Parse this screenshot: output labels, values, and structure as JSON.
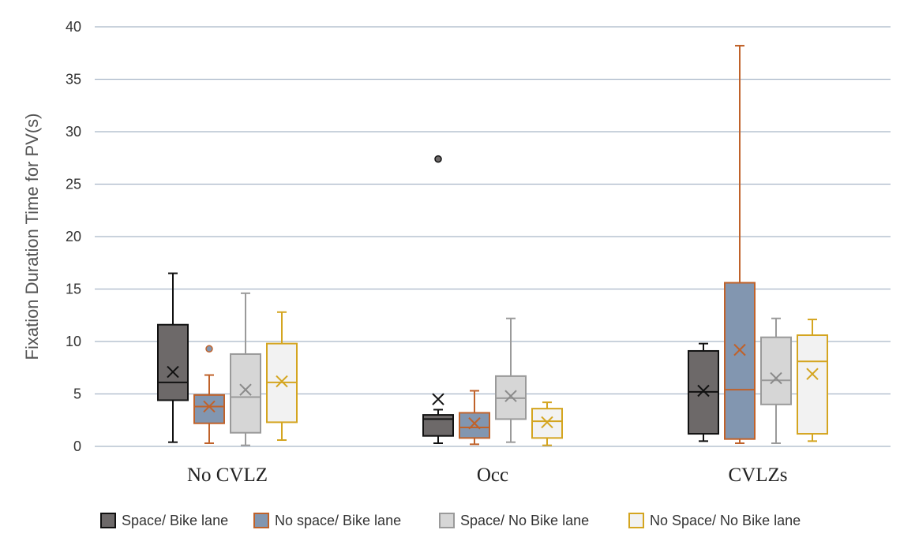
{
  "chart_data": {
    "type": "box",
    "ylabel": "Fixation Duration Time for PV(s)",
    "ylim": [
      0,
      40
    ],
    "yticks": [
      0,
      5,
      10,
      15,
      20,
      25,
      30,
      35,
      40
    ],
    "grid": true,
    "legend_position": "bottom",
    "categories": [
      "No CVLZ",
      "Occ",
      "CVLZs"
    ],
    "series": [
      {
        "name": "Space/ Bike lane",
        "fill": "#6d6969",
        "stroke": "#111111",
        "mean_color": "#111111",
        "boxes": [
          {
            "whisker_low": 0.4,
            "q1": 4.4,
            "median": 6.1,
            "q3": 11.6,
            "whisker_high": 16.5,
            "mean": 7.1,
            "outliers": []
          },
          {
            "whisker_low": 0.3,
            "q1": 1.0,
            "median": 2.6,
            "q3": 3.0,
            "whisker_high": 3.5,
            "mean": 4.5,
            "outliers": [
              27.4
            ]
          },
          {
            "whisker_low": 0.5,
            "q1": 1.2,
            "median": 5.2,
            "q3": 9.1,
            "whisker_high": 9.8,
            "mean": 5.3,
            "outliers": []
          }
        ]
      },
      {
        "name": "No space/ Bike lane",
        "fill": "#8296b0",
        "stroke": "#c0622a",
        "mean_color": "#c0622a",
        "boxes": [
          {
            "whisker_low": 0.3,
            "q1": 2.2,
            "median": 3.8,
            "q3": 4.9,
            "whisker_high": 6.8,
            "mean": 3.8,
            "outliers": [
              9.3
            ]
          },
          {
            "whisker_low": 0.2,
            "q1": 0.8,
            "median": 1.8,
            "q3": 3.2,
            "whisker_high": 5.3,
            "mean": 2.2,
            "outliers": []
          },
          {
            "whisker_low": 0.3,
            "q1": 0.7,
            "median": 5.4,
            "q3": 15.6,
            "whisker_high": 38.2,
            "mean": 9.2,
            "outliers": []
          }
        ]
      },
      {
        "name": "Space/ No Bike lane",
        "fill": "#d6d6d6",
        "stroke": "#9a9a9a",
        "mean_color": "#8a8a8a",
        "boxes": [
          {
            "whisker_low": 0.1,
            "q1": 1.3,
            "median": 4.7,
            "q3": 8.8,
            "whisker_high": 14.6,
            "mean": 5.4,
            "outliers": []
          },
          {
            "whisker_low": 0.4,
            "q1": 2.6,
            "median": 4.6,
            "q3": 6.7,
            "whisker_high": 12.2,
            "mean": 4.8,
            "outliers": []
          },
          {
            "whisker_low": 0.3,
            "q1": 4.0,
            "median": 6.3,
            "q3": 10.4,
            "whisker_high": 12.2,
            "mean": 6.5,
            "outliers": []
          }
        ]
      },
      {
        "name": "No Space/ No Bike lane",
        "fill": "#f2f2f2",
        "stroke": "#d4a520",
        "mean_color": "#d4a520",
        "boxes": [
          {
            "whisker_low": 0.6,
            "q1": 2.3,
            "median": 6.1,
            "q3": 9.8,
            "whisker_high": 12.8,
            "mean": 6.2,
            "outliers": []
          },
          {
            "whisker_low": 0.1,
            "q1": 0.8,
            "median": 2.4,
            "q3": 3.6,
            "whisker_high": 4.2,
            "mean": 2.3,
            "outliers": []
          },
          {
            "whisker_low": 0.5,
            "q1": 1.2,
            "median": 8.1,
            "q3": 10.6,
            "whisker_high": 12.1,
            "mean": 6.9,
            "outliers": []
          }
        ]
      }
    ]
  }
}
